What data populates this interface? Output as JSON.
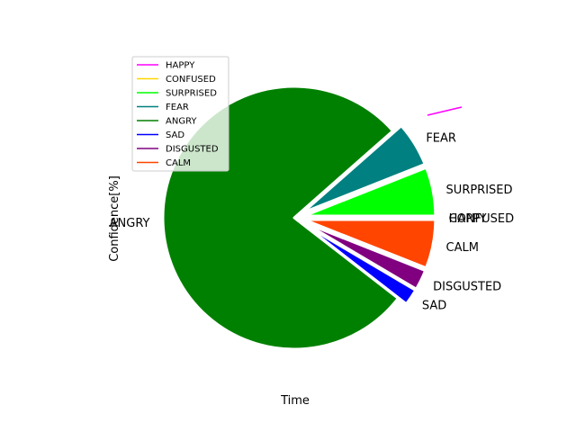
{
  "chart_data": {
    "type": "pie",
    "title": "",
    "xlabel": "Time",
    "ylabel": "Confidence[%]",
    "legend_position": "upper-left",
    "slices": [
      {
        "label": "HAPPY",
        "value": 0.0,
        "color": "#ff00ff"
      },
      {
        "label": "CONFUSED",
        "value": 0.0,
        "color": "#ffd700"
      },
      {
        "label": "SURPRISED",
        "value": 6.0,
        "color": "#00ff00"
      },
      {
        "label": "FEAR",
        "value": 5.5,
        "color": "#008080"
      },
      {
        "label": "ANGRY",
        "value": 78.0,
        "color": "#008000"
      },
      {
        "label": "SAD",
        "value": 2.0,
        "color": "#0000ff"
      },
      {
        "label": "DISGUSTED",
        "value": 2.5,
        "color": "#800080"
      },
      {
        "label": "CALM",
        "value": 6.0,
        "color": "#ff4500"
      }
    ],
    "start_angle_deg": 0,
    "counterclockwise": true,
    "explode": 0.1
  }
}
